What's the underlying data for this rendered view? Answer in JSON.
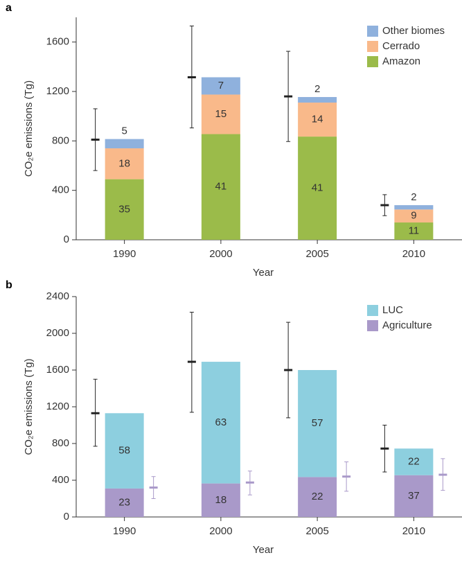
{
  "chart_data": [
    {
      "type": "stacked-bar",
      "panel": "a",
      "y_label": "CO₂e emissions (Tg)",
      "x_label": "Year",
      "categories": [
        "1990",
        "2000",
        "2005",
        "2010"
      ],
      "ylim": [
        0,
        1800
      ],
      "yticks": [
        0,
        400,
        800,
        1200,
        1600
      ],
      "legend": "upper right",
      "series": [
        {
          "name": "Amazon",
          "color": "#9bbb4a",
          "values": [
            490,
            855,
            835,
            140
          ],
          "labels": [
            "35",
            "41",
            "41",
            "11"
          ]
        },
        {
          "name": "Cerrado",
          "color": "#f9b98a",
          "values": [
            250,
            320,
            275,
            105
          ],
          "labels": [
            "18",
            "15",
            "14",
            "9"
          ]
        },
        {
          "name": "Other biomes",
          "color": "#8fb1dd",
          "values": [
            75,
            140,
            45,
            35
          ],
          "labels": [
            "5",
            "7",
            "2",
            "2"
          ]
        }
      ],
      "error_bars": [
        {
          "color": "#222222",
          "values": [
            810,
            1315,
            1160,
            280
          ],
          "lower": [
            560,
            905,
            795,
            195
          ],
          "upper": [
            1060,
            1730,
            1525,
            365
          ]
        }
      ]
    },
    {
      "type": "stacked-bar",
      "panel": "b",
      "y_label": "CO₂e emissions (Tg)",
      "x_label": "Year",
      "categories": [
        "1990",
        "2000",
        "2005",
        "2010"
      ],
      "ylim": [
        0,
        2400
      ],
      "yticks": [
        0,
        400,
        800,
        1200,
        1600,
        2000,
        2400
      ],
      "legend": "upper right",
      "series": [
        {
          "name": "Agriculture",
          "color": "#a999c9",
          "values": [
            310,
            365,
            435,
            455
          ],
          "labels": [
            "23",
            "18",
            "22",
            "37"
          ]
        },
        {
          "name": "LUC",
          "color": "#8dcfdf",
          "values": [
            820,
            1325,
            1165,
            290
          ],
          "labels": [
            "58",
            "63",
            "57",
            "22"
          ]
        }
      ],
      "error_bars": [
        {
          "color": "#222222",
          "values": [
            1130,
            1690,
            1600,
            745
          ],
          "lower": [
            770,
            1140,
            1080,
            490
          ],
          "upper": [
            1500,
            2230,
            2120,
            1000
          ]
        },
        {
          "color": "#a999c9",
          "values": [
            320,
            375,
            440,
            460
          ],
          "lower": [
            200,
            240,
            280,
            290
          ],
          "upper": [
            440,
            500,
            600,
            635
          ]
        }
      ]
    }
  ]
}
